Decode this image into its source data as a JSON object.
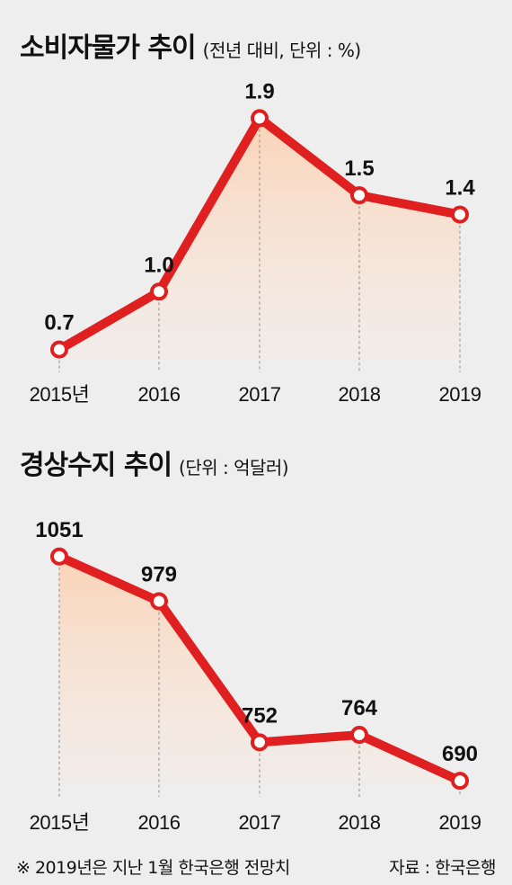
{
  "chart_data": [
    {
      "type": "line",
      "title": "소비자물가 추이",
      "subtitle": "(전년 대비, 단위 : %)",
      "categories": [
        "2015년",
        "2016",
        "2017",
        "2018",
        "2019"
      ],
      "values": [
        0.7,
        1.0,
        1.9,
        1.5,
        1.4
      ],
      "value_labels": [
        "0.7",
        "1.0",
        "1.9",
        "1.5",
        "1.4"
      ],
      "ylim": [
        0.6,
        2.0
      ],
      "line_color": "#e02020",
      "fill_color": "#fbd8bf",
      "grid": false
    },
    {
      "type": "line",
      "title": "경상수지 추이",
      "subtitle": "(단위 : 억달러)",
      "categories": [
        "2015년",
        "2016",
        "2017",
        "2018",
        "2019"
      ],
      "values": [
        1051,
        979,
        752,
        764,
        690
      ],
      "value_labels": [
        "1051",
        "979",
        "752",
        "764",
        "690"
      ],
      "ylim": [
        670,
        1110
      ],
      "line_color": "#e02020",
      "fill_color": "#fbd8bf",
      "grid": false
    }
  ],
  "footer": {
    "note": "※ 2019년은 지난 1월 한국은행 전망치",
    "source": "자료 : 한국은행"
  }
}
